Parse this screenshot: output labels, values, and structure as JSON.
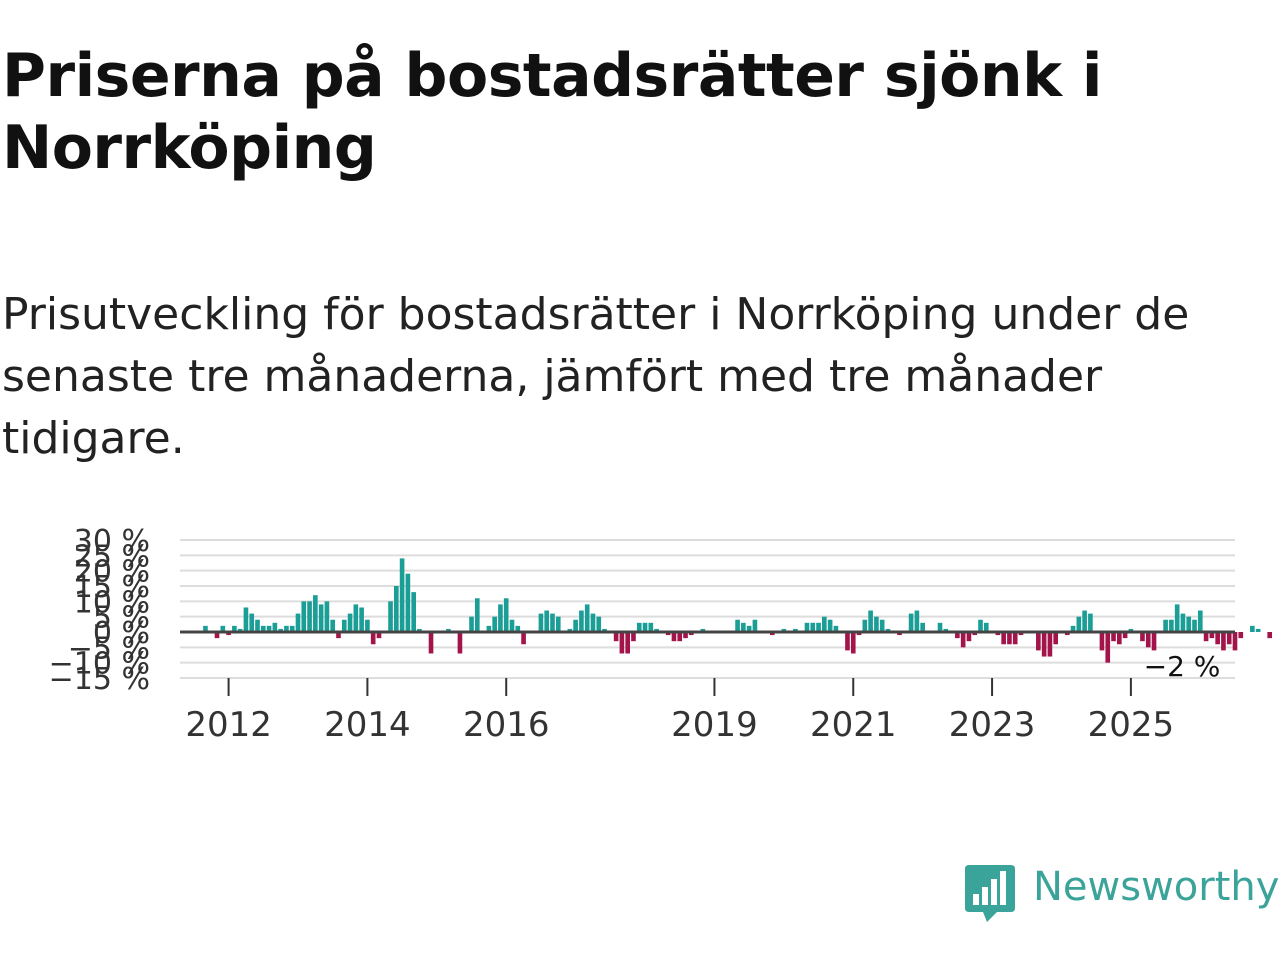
{
  "header": {
    "title": "Priserna på bostadsrätter sjönk i Norrköping",
    "subtitle": "Prisutveckling för bostadsrätter i Norrköping under de senaste tre månaderna, jämfört med tre månader tidigare."
  },
  "branding": {
    "name": "Newsworthy"
  },
  "colors": {
    "positive": "#1a9e96",
    "negative": "#a3144a",
    "grid": "#dddddd",
    "zero_line": "#444444",
    "brand": "#3aa39a"
  },
  "chart_data": {
    "type": "bar",
    "title": "Priserna på bostadsrätter sjönk i Norrköping",
    "xlabel": "",
    "ylabel": "",
    "unit": "%",
    "ylim": [
      -15,
      30
    ],
    "y_ticks": [
      -15,
      -10,
      -5,
      0,
      5,
      10,
      15,
      20,
      25,
      30
    ],
    "y_tick_labels": [
      "−15 %",
      "−10 %",
      "−5 %",
      "0 %",
      "5 %",
      "10 %",
      "15 %",
      "20 %",
      "25 %",
      "30 %"
    ],
    "x_ticks": [
      "2012",
      "2014",
      "2016",
      "2019",
      "2021",
      "2023",
      "2025"
    ],
    "x_tick_positions": [
      2012,
      2014,
      2016,
      2019,
      2021,
      2023,
      2025
    ],
    "x_range": [
      2011.3,
      2026.5
    ],
    "start": [
      2011,
      9
    ],
    "annotation": {
      "text": "−2 %",
      "target": "last"
    },
    "values": [
      2,
      0,
      -2,
      2,
      -1,
      2,
      1,
      8,
      6,
      4,
      2,
      2,
      3,
      1,
      2,
      2,
      6,
      10,
      10,
      12,
      9,
      10,
      4,
      -2,
      4,
      6,
      9,
      8,
      4,
      -4,
      -2,
      0,
      10,
      15,
      24,
      19,
      13,
      1,
      0,
      -7,
      0,
      0,
      1,
      0,
      -7,
      0,
      5,
      11,
      0,
      2,
      5,
      9,
      11,
      4,
      2,
      -4,
      0,
      0,
      6,
      7,
      6,
      5,
      0,
      1,
      4,
      7,
      9,
      6,
      5,
      1,
      0,
      -3,
      -7,
      -7,
      -3,
      3,
      3,
      3,
      1,
      0,
      -1,
      -3,
      -3,
      -2,
      -1,
      0,
      1,
      0,
      0,
      0,
      0,
      0,
      4,
      3,
      2,
      4,
      0,
      0,
      -1,
      0,
      1,
      0,
      1,
      0,
      3,
      3,
      3,
      5,
      4,
      2,
      0,
      -6,
      -7,
      -1,
      4,
      7,
      5,
      4,
      1,
      0,
      -1,
      0,
      6,
      7,
      3,
      0,
      0,
      3,
      1,
      0,
      -2,
      -5,
      -3,
      -1,
      4,
      3,
      0,
      -1,
      -4,
      -4,
      -4,
      -1,
      0,
      0,
      -6,
      -8,
      -8,
      -4,
      0,
      -1,
      2,
      5,
      7,
      6,
      0,
      -6,
      -10,
      -3,
      -4,
      -2,
      1,
      0,
      -3,
      -5,
      -6,
      0,
      4,
      4,
      9,
      6,
      5,
      4,
      7,
      -3,
      -2,
      -4,
      -6,
      -4,
      -6,
      -2,
      0,
      2,
      1,
      0,
      -2
    ]
  }
}
